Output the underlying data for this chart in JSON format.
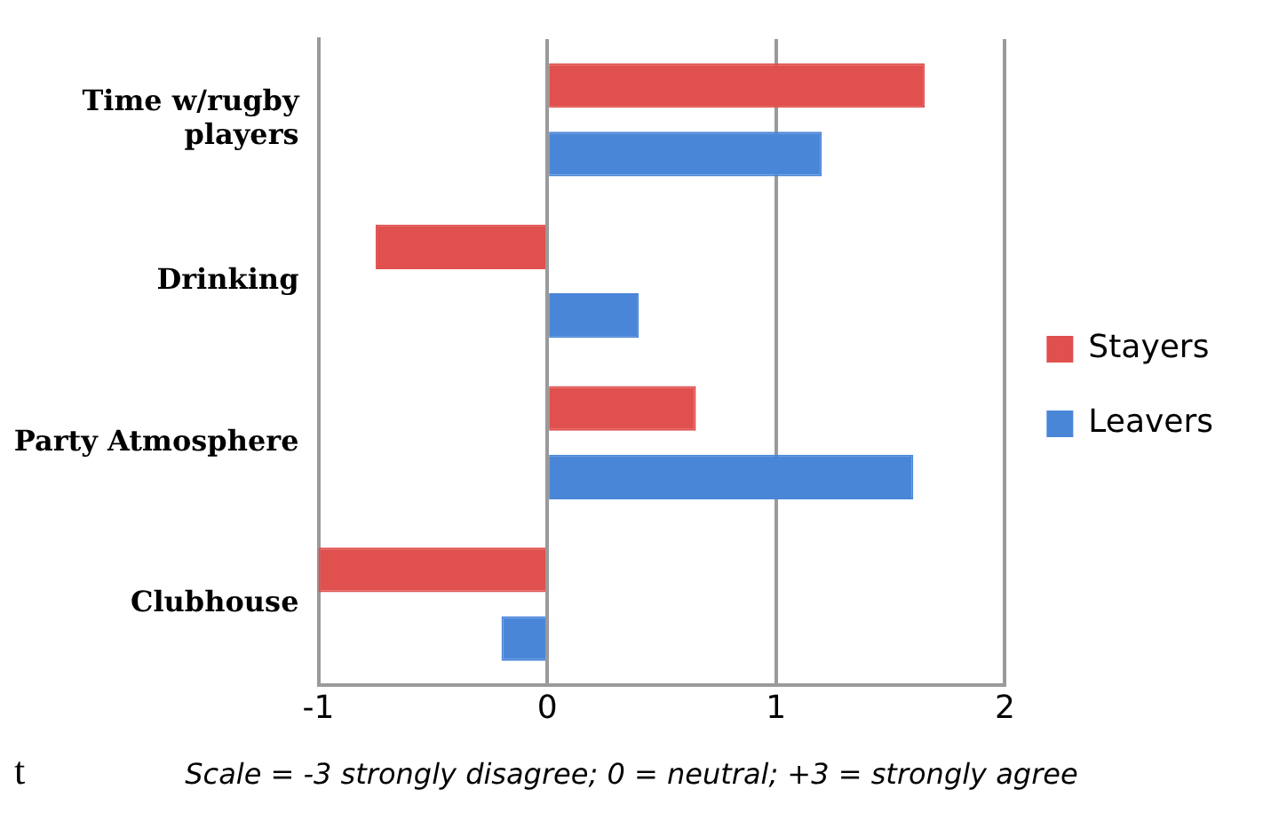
{
  "chart_data": {
    "type": "bar",
    "orientation": "horizontal",
    "categories": [
      "Time w/rugby players",
      "Drinking",
      "Party Atmosphere",
      "Clubhouse"
    ],
    "series": [
      {
        "name": "Stayers",
        "color": "#e0504e",
        "values": [
          1.65,
          -0.75,
          0.65,
          -1.0
        ]
      },
      {
        "name": "Leavers",
        "color": "#4a86d8",
        "values": [
          1.2,
          0.4,
          1.6,
          -0.2
        ]
      }
    ],
    "xlim": [
      -1,
      2
    ],
    "xticks": [
      -1,
      0,
      1,
      2
    ],
    "grid": "x",
    "legend": "right",
    "annotations": [
      "t",
      "Scale = -3 strongly disagree; 0 = neutral; +3 = strongly agree"
    ]
  }
}
